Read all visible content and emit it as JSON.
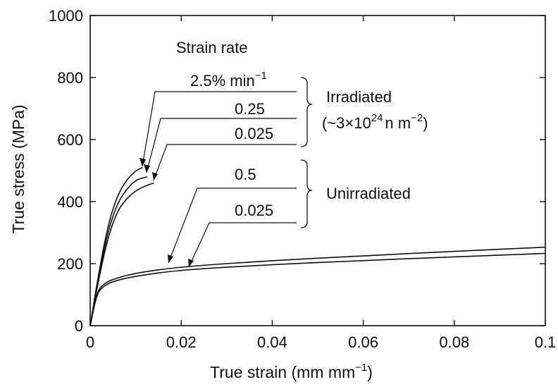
{
  "chart_data": {
    "type": "line",
    "title": "",
    "xlabel": "True strain (mm mm",
    "xlabel_sup": "−1",
    "xlabel_close": ")",
    "ylabel": "True stress (MPa)",
    "xlim": [
      0,
      0.1
    ],
    "ylim": [
      0,
      1000
    ],
    "x_ticks": [
      0,
      0.02,
      0.04,
      0.06,
      0.08,
      0.1
    ],
    "x_tick_labels": [
      "0",
      "0.02",
      "0.04",
      "0.06",
      "0.08",
      "0.1"
    ],
    "y_ticks": [
      0,
      200,
      400,
      600,
      800,
      1000
    ],
    "y_tick_labels": [
      "0",
      "200",
      "400",
      "600",
      "800",
      "1000"
    ],
    "grid": false,
    "annotations": {
      "strain_rate_heading": "Strain rate",
      "unit_main": "2.5% min",
      "unit_sup": "−1",
      "irradiated_label": "Irradiated",
      "irradiated_fluence": "(~3×10",
      "irradiated_fluence_sup": "24",
      "irradiated_fluence_unit": "n m",
      "irradiated_fluence_unit_sup": "−2",
      "irradiated_fluence_close": ")",
      "unirradiated_label": "Unirradiated"
    },
    "series": [
      {
        "group": "irradiated",
        "rate_label": "2.5% min−1",
        "x": [
          0,
          0.002,
          0.004,
          0.006,
          0.008,
          0.01,
          0.0115
        ],
        "y": [
          0,
          180,
          330,
          420,
          470,
          500,
          510
        ]
      },
      {
        "group": "irradiated",
        "rate_label": "0.25",
        "x": [
          0,
          0.002,
          0.004,
          0.006,
          0.008,
          0.01,
          0.0125
        ],
        "y": [
          0,
          170,
          310,
          395,
          440,
          470,
          480
        ]
      },
      {
        "group": "irradiated",
        "rate_label": "0.025",
        "x": [
          0,
          0.002,
          0.004,
          0.006,
          0.008,
          0.01,
          0.012,
          0.014
        ],
        "y": [
          0,
          160,
          290,
          370,
          410,
          435,
          450,
          460
        ]
      },
      {
        "group": "unirradiated",
        "rate_label": "0.5",
        "x": [
          0,
          0.0015,
          0.003,
          0.005,
          0.01,
          0.02,
          0.04,
          0.06,
          0.08,
          0.1
        ],
        "y": [
          0,
          110,
          135,
          150,
          170,
          190,
          210,
          225,
          240,
          253
        ]
      },
      {
        "group": "unirradiated",
        "rate_label": "0.025",
        "x": [
          0,
          0.0015,
          0.003,
          0.005,
          0.01,
          0.02,
          0.04,
          0.06,
          0.08,
          0.1
        ],
        "y": [
          0,
          105,
          128,
          143,
          160,
          180,
          197,
          210,
          222,
          233
        ]
      }
    ]
  }
}
